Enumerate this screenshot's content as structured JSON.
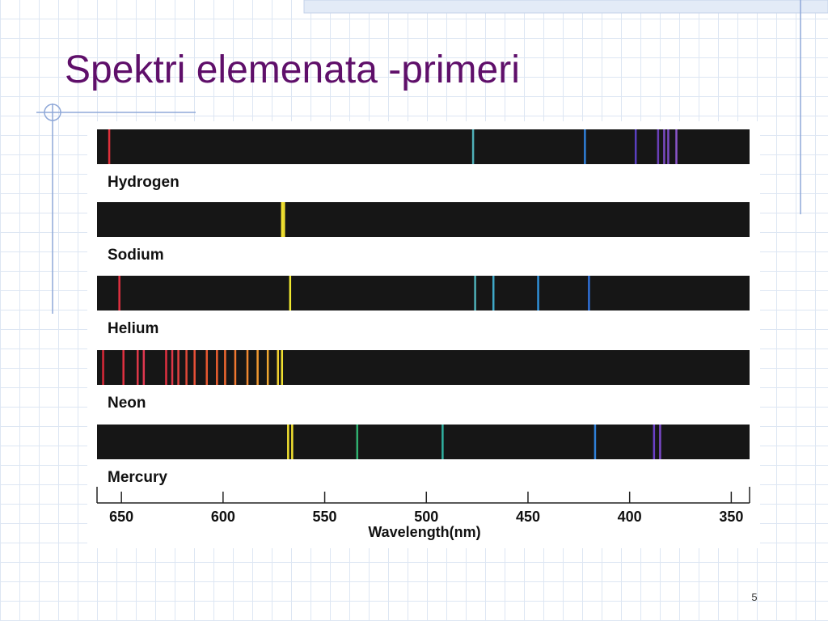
{
  "slide": {
    "title": "Spektri elemenata -primeri",
    "page_number": "5"
  },
  "chart_data": {
    "type": "spectrum",
    "xlabel": "Wavelength(nm)",
    "xlim": [
      662,
      341
    ],
    "xticks": [
      650,
      600,
      550,
      500,
      450,
      400,
      350
    ],
    "series": [
      {
        "name": "Hydrogen",
        "values": [
          656,
          477,
          422,
          397,
          386,
          383,
          381,
          377
        ],
        "colors": [
          "#e0303a",
          "#4fb0b8",
          "#2f7fd8",
          "#5a3fc0",
          "#6a3fb8",
          "#7a4ac0",
          "#7a4ac0",
          "#8a55c8"
        ]
      },
      {
        "name": "Sodium",
        "values": [
          571,
          570
        ],
        "colors": [
          "#f0e030",
          "#f0e030"
        ]
      },
      {
        "name": "Helium",
        "values": [
          651,
          567,
          476,
          467,
          445,
          420
        ],
        "colors": [
          "#e03040",
          "#f0e830",
          "#4fb0b8",
          "#3fa8c8",
          "#2f90d8",
          "#2f70d8"
        ]
      },
      {
        "name": "Neon",
        "values": [
          659,
          649,
          642,
          639,
          628,
          625,
          622,
          618,
          614,
          608,
          603,
          599,
          594,
          588,
          583,
          578,
          573,
          571
        ],
        "colors": [
          "#d82838",
          "#e03040",
          "#e03848",
          "#e03850",
          "#e03040",
          "#e03848",
          "#e04040",
          "#e04838",
          "#e85038",
          "#e85830",
          "#f06030",
          "#f06830",
          "#f07830",
          "#f08830",
          "#f09830",
          "#f0a830",
          "#f0d030",
          "#f0e030"
        ]
      },
      {
        "name": "Mercury",
        "values": [
          568,
          566,
          534,
          492,
          417,
          388,
          385
        ],
        "colors": [
          "#f0e030",
          "#f0e030",
          "#30b070",
          "#30b0a0",
          "#2f80d8",
          "#6a40c8",
          "#7a48c8"
        ]
      }
    ]
  }
}
